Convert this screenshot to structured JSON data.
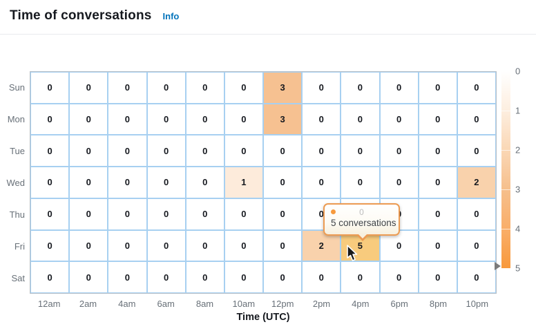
{
  "header": {
    "title": "Time of conversations",
    "info_label": "Info"
  },
  "chart_data": {
    "type": "heatmap",
    "title": "Time of conversations",
    "xlabel": "Time (UTC)",
    "x_categories": [
      "12am",
      "2am",
      "4am",
      "6am",
      "8am",
      "10am",
      "12pm",
      "2pm",
      "4pm",
      "6pm",
      "8pm",
      "10pm"
    ],
    "y_categories": [
      "Sun",
      "Mon",
      "Tue",
      "Wed",
      "Thu",
      "Fri",
      "Sat"
    ],
    "values": [
      [
        0,
        0,
        0,
        0,
        0,
        0,
        3,
        0,
        0,
        0,
        0,
        0
      ],
      [
        0,
        0,
        0,
        0,
        0,
        0,
        3,
        0,
        0,
        0,
        0,
        0
      ],
      [
        0,
        0,
        0,
        0,
        0,
        0,
        0,
        0,
        0,
        0,
        0,
        0
      ],
      [
        0,
        0,
        0,
        0,
        0,
        1,
        0,
        0,
        0,
        0,
        0,
        2
      ],
      [
        0,
        0,
        0,
        0,
        0,
        0,
        0,
        0,
        0,
        0,
        0,
        0
      ],
      [
        0,
        0,
        0,
        0,
        0,
        0,
        0,
        2,
        5,
        0,
        0,
        0
      ],
      [
        0,
        0,
        0,
        0,
        0,
        0,
        0,
        0,
        0,
        0,
        0,
        0
      ]
    ],
    "legend": {
      "ticks": [
        "0",
        "1",
        "2",
        "3",
        "4",
        "5"
      ],
      "min": 0,
      "max": 5,
      "position": "right"
    },
    "grid_on": true,
    "hovered_cell": {
      "row": 5,
      "col": 8,
      "day": "Fri",
      "time": "4pm",
      "value": 5
    }
  },
  "tooltip": {
    "x_value": "0",
    "label": "5 conversations"
  },
  "colors": {
    "accent_link": "#0273bb",
    "cell_border": "#a7d0f1",
    "hover_cell": "#f8cb7d",
    "tooltip_border": "#ec9b52",
    "legend_max": "#f8993c",
    "value_colors": {
      "0": "#ffffff",
      "1": "#fdebdb",
      "2": "#f9d2ac",
      "3": "#f6c191",
      "4": "#f9ae69",
      "5": "#f89b42"
    }
  }
}
